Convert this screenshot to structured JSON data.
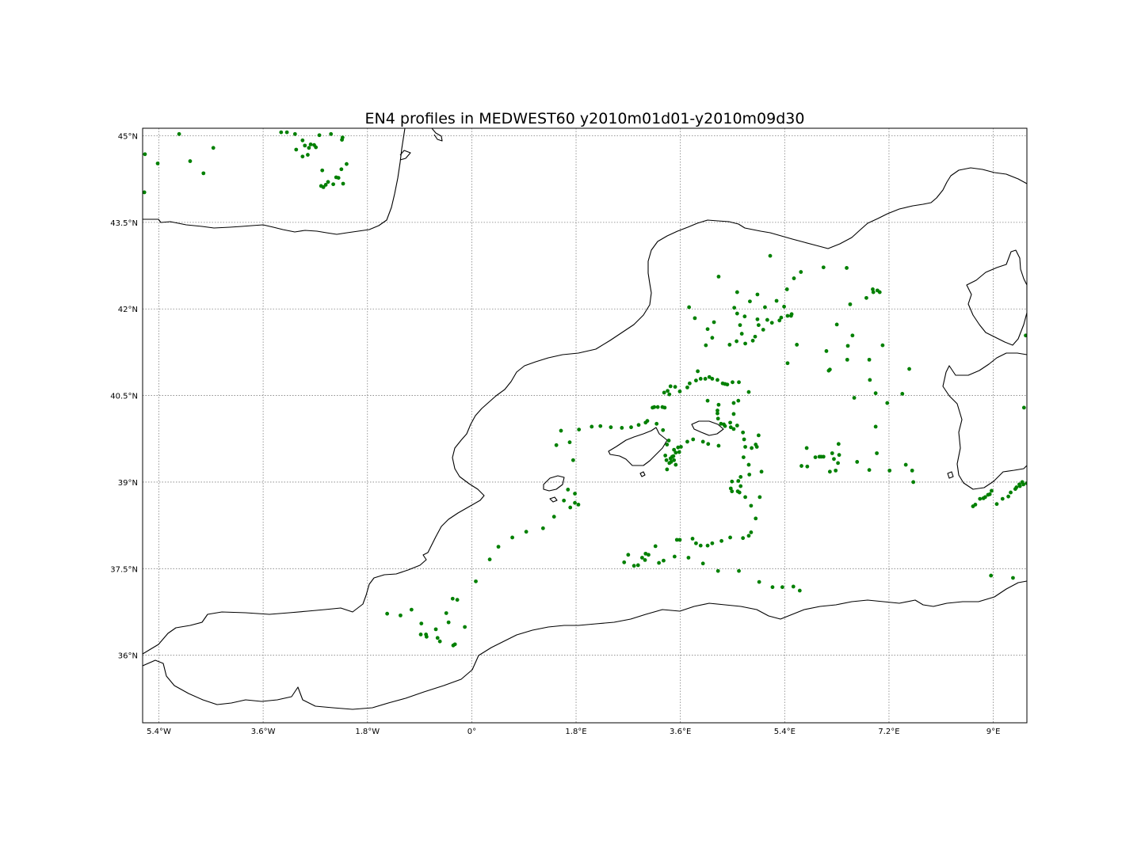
{
  "chart_data": {
    "type": "scatter",
    "title": "EN4 profiles in MEDWEST60 y2010m01d01-y2010m09d30",
    "xlabel": "",
    "ylabel": "",
    "xlim": [
      -5.68,
      9.58
    ],
    "ylim": [
      34.83,
      45.13
    ],
    "grid": true,
    "marker_color": "#008000",
    "coastline_color": "#000000",
    "x_ticks": [
      {
        "value": -5.4,
        "label": "5.4°W"
      },
      {
        "value": -3.6,
        "label": "3.6°W"
      },
      {
        "value": -1.8,
        "label": "1.8°W"
      },
      {
        "value": 0,
        "label": "0°"
      },
      {
        "value": 1.8,
        "label": "1.8°E"
      },
      {
        "value": 3.6,
        "label": "3.6°E"
      },
      {
        "value": 5.4,
        "label": "5.4°E"
      },
      {
        "value": 7.2,
        "label": "7.2°E"
      },
      {
        "value": 9.0,
        "label": "9°E"
      }
    ],
    "y_ticks": [
      {
        "value": 36,
        "label": "36°N"
      },
      {
        "value": 37.5,
        "label": "37.5°N"
      },
      {
        "value": 39,
        "label": "39°N"
      },
      {
        "value": 40.5,
        "label": "40.5°N"
      },
      {
        "value": 42,
        "label": "42°N"
      },
      {
        "value": 43.5,
        "label": "43.5°N"
      },
      {
        "value": 45,
        "label": "45°N"
      }
    ],
    "points": [
      [
        -5.64,
        44.68
      ],
      [
        -5.42,
        44.52
      ],
      [
        -5.05,
        45.03
      ],
      [
        -4.86,
        44.56
      ],
      [
        -4.63,
        44.35
      ],
      [
        -4.46,
        44.79
      ],
      [
        -3.29,
        45.06
      ],
      [
        -3.19,
        45.06
      ],
      [
        -3.05,
        45.03
      ],
      [
        -2.92,
        44.92
      ],
      [
        -2.81,
        44.79
      ],
      [
        -2.78,
        44.85
      ],
      [
        -2.88,
        44.83
      ],
      [
        -2.69,
        44.8
      ],
      [
        -2.72,
        44.84
      ],
      [
        -2.63,
        45.01
      ],
      [
        -2.43,
        45.03
      ],
      [
        -2.23,
        44.97
      ],
      [
        -2.24,
        44.93
      ],
      [
        -3.03,
        44.76
      ],
      [
        -2.92,
        44.64
      ],
      [
        -2.83,
        44.67
      ],
      [
        -2.58,
        44.4
      ],
      [
        -2.6,
        44.13
      ],
      [
        -2.52,
        44.15
      ],
      [
        -2.48,
        44.2
      ],
      [
        -2.34,
        44.28
      ],
      [
        -2.3,
        44.27
      ],
      [
        -2.25,
        44.42
      ],
      [
        -2.16,
        44.51
      ],
      [
        -2.22,
        44.17
      ],
      [
        -2.39,
        44.16
      ],
      [
        -2.56,
        44.11
      ],
      [
        -5.65,
        44.02
      ],
      [
        4.26,
        42.56
      ],
      [
        4.58,
        42.29
      ],
      [
        4.93,
        42.25
      ],
      [
        4.8,
        42.13
      ],
      [
        4.53,
        42.02
      ],
      [
        4.58,
        41.92
      ],
      [
        4.71,
        41.87
      ],
      [
        5.06,
        42.03
      ],
      [
        5.26,
        42.14
      ],
      [
        5.39,
        42.04
      ],
      [
        5.44,
        42.34
      ],
      [
        5.52,
        41.91
      ],
      [
        5.51,
        41.88
      ],
      [
        5.45,
        41.88
      ],
      [
        5.34,
        41.85
      ],
      [
        5.31,
        41.8
      ],
      [
        4.93,
        41.82
      ],
      [
        5.1,
        41.81
      ],
      [
        4.95,
        41.72
      ],
      [
        5.18,
        41.76
      ],
      [
        5.03,
        41.64
      ],
      [
        4.89,
        41.52
      ],
      [
        4.63,
        41.72
      ],
      [
        4.66,
        41.57
      ],
      [
        4.85,
        41.45
      ],
      [
        4.72,
        41.4
      ],
      [
        4.57,
        41.44
      ],
      [
        4.45,
        41.38
      ],
      [
        4.18,
        41.77
      ],
      [
        4.07,
        41.65
      ],
      [
        4.15,
        41.5
      ],
      [
        4.04,
        41.37
      ],
      [
        3.85,
        41.84
      ],
      [
        3.75,
        42.03
      ],
      [
        5.45,
        41.06
      ],
      [
        5.61,
        41.38
      ],
      [
        5.15,
        42.92
      ],
      [
        5.56,
        42.53
      ],
      [
        5.68,
        42.64
      ],
      [
        6.07,
        42.72
      ],
      [
        6.47,
        42.71
      ],
      [
        6.53,
        42.08
      ],
      [
        6.93,
        42.29
      ],
      [
        6.92,
        42.34
      ],
      [
        7.0,
        42.32
      ],
      [
        7.04,
        42.29
      ],
      [
        6.81,
        42.19
      ],
      [
        7.09,
        41.37
      ],
      [
        6.3,
        41.73
      ],
      [
        6.57,
        41.54
      ],
      [
        6.49,
        41.36
      ],
      [
        6.48,
        41.12
      ],
      [
        6.86,
        41.12
      ],
      [
        6.12,
        41.27
      ],
      [
        6.18,
        40.95
      ],
      [
        6.16,
        40.93
      ],
      [
        6.87,
        40.77
      ],
      [
        6.97,
        40.54
      ],
      [
        6.6,
        40.46
      ],
      [
        7.17,
        40.37
      ],
      [
        7.43,
        40.53
      ],
      [
        7.55,
        40.96
      ],
      [
        6.97,
        39.96
      ],
      [
        5.78,
        39.59
      ],
      [
        6.0,
        39.44
      ],
      [
        5.93,
        39.43
      ],
      [
        6.03,
        39.44
      ],
      [
        6.07,
        39.44
      ],
      [
        6.25,
        39.4
      ],
      [
        6.32,
        39.33
      ],
      [
        6.34,
        39.47
      ],
      [
        6.22,
        39.5
      ],
      [
        6.33,
        39.66
      ],
      [
        6.65,
        39.35
      ],
      [
        6.86,
        39.21
      ],
      [
        6.99,
        39.5
      ],
      [
        7.21,
        39.2
      ],
      [
        7.49,
        39.3
      ],
      [
        7.6,
        39.2
      ],
      [
        7.62,
        39.0
      ],
      [
        5.69,
        39.28
      ],
      [
        5.79,
        39.27
      ],
      [
        6.18,
        39.18
      ],
      [
        6.28,
        39.2
      ],
      [
        3.43,
        40.66
      ],
      [
        3.38,
        40.58
      ],
      [
        3.32,
        40.55
      ],
      [
        3.41,
        40.52
      ],
      [
        3.59,
        40.57
      ],
      [
        3.51,
        40.65
      ],
      [
        3.72,
        40.64
      ],
      [
        3.87,
        40.76
      ],
      [
        3.76,
        40.71
      ],
      [
        3.9,
        40.92
      ],
      [
        3.95,
        40.79
      ],
      [
        4.03,
        40.79
      ],
      [
        4.1,
        40.82
      ],
      [
        4.15,
        40.79
      ],
      [
        4.24,
        40.77
      ],
      [
        4.33,
        40.71
      ],
      [
        4.37,
        40.7
      ],
      [
        4.41,
        40.69
      ],
      [
        4.5,
        40.73
      ],
      [
        4.61,
        40.73
      ],
      [
        4.78,
        40.56
      ],
      [
        4.6,
        40.41
      ],
      [
        4.52,
        40.37
      ],
      [
        4.07,
        40.41
      ],
      [
        4.26,
        40.34
      ],
      [
        4.24,
        40.24
      ],
      [
        4.24,
        40.19
      ],
      [
        4.25,
        40.1
      ],
      [
        4.3,
        40.01
      ],
      [
        4.35,
        40.0
      ],
      [
        4.52,
        40.18
      ],
      [
        4.58,
        39.98
      ],
      [
        4.37,
        39.97
      ],
      [
        4.46,
        40.03
      ],
      [
        4.47,
        39.95
      ],
      [
        4.52,
        39.92
      ],
      [
        4.68,
        39.86
      ],
      [
        4.7,
        39.74
      ],
      [
        4.72,
        39.61
      ],
      [
        4.83,
        39.59
      ],
      [
        4.9,
        39.65
      ],
      [
        4.92,
        39.61
      ],
      [
        4.95,
        39.81
      ],
      [
        4.69,
        39.43
      ],
      [
        4.78,
        39.3
      ],
      [
        5.0,
        39.18
      ],
      [
        4.79,
        39.13
      ],
      [
        4.64,
        39.09
      ],
      [
        4.49,
        39.01
      ],
      [
        4.6,
        39.02
      ],
      [
        4.64,
        38.93
      ],
      [
        4.62,
        38.82
      ],
      [
        4.47,
        38.89
      ],
      [
        4.49,
        38.84
      ],
      [
        4.59,
        38.84
      ],
      [
        4.72,
        38.74
      ],
      [
        4.97,
        38.74
      ],
      [
        4.82,
        38.59
      ],
      [
        4.9,
        38.37
      ],
      [
        4.82,
        38.13
      ],
      [
        4.78,
        38.07
      ],
      [
        4.68,
        38.03
      ],
      [
        3.12,
        40.29
      ],
      [
        3.15,
        40.3
      ],
      [
        3.21,
        40.3
      ],
      [
        3.29,
        40.3
      ],
      [
        3.33,
        40.29
      ],
      [
        1.54,
        39.89
      ],
      [
        1.85,
        39.91
      ],
      [
        2.07,
        39.96
      ],
      [
        2.22,
        39.97
      ],
      [
        2.4,
        39.95
      ],
      [
        2.59,
        39.94
      ],
      [
        2.75,
        39.95
      ],
      [
        2.88,
        39.99
      ],
      [
        3.0,
        40.03
      ],
      [
        3.03,
        40.06
      ],
      [
        3.19,
        40.01
      ],
      [
        3.3,
        39.9
      ],
      [
        3.37,
        39.65
      ],
      [
        3.4,
        39.72
      ],
      [
        3.49,
        39.56
      ],
      [
        3.56,
        39.6
      ],
      [
        3.61,
        39.61
      ],
      [
        3.72,
        39.7
      ],
      [
        3.82,
        39.74
      ],
      [
        3.99,
        39.7
      ],
      [
        4.08,
        39.66
      ],
      [
        4.26,
        39.63
      ],
      [
        3.52,
        39.51
      ],
      [
        3.58,
        39.52
      ],
      [
        3.46,
        39.44
      ],
      [
        3.49,
        39.38
      ],
      [
        3.44,
        39.35
      ],
      [
        3.52,
        39.3
      ],
      [
        3.37,
        39.22
      ],
      [
        3.41,
        39.33
      ],
      [
        3.36,
        39.38
      ],
      [
        3.43,
        39.41
      ],
      [
        3.48,
        39.45
      ],
      [
        3.34,
        39.46
      ],
      [
        1.46,
        39.64
      ],
      [
        1.69,
        39.69
      ],
      [
        1.75,
        39.38
      ],
      [
        1.66,
        38.87
      ],
      [
        1.78,
        38.8
      ],
      [
        1.78,
        38.64
      ],
      [
        1.7,
        38.56
      ],
      [
        1.59,
        38.68
      ],
      [
        1.84,
        38.61
      ],
      [
        1.42,
        38.4
      ],
      [
        1.23,
        38.2
      ],
      [
        0.94,
        38.14
      ],
      [
        0.7,
        38.04
      ],
      [
        0.46,
        37.88
      ],
      [
        0.31,
        37.66
      ],
      [
        0.07,
        37.28
      ],
      [
        2.63,
        37.61
      ],
      [
        2.7,
        37.74
      ],
      [
        2.8,
        37.55
      ],
      [
        2.87,
        37.56
      ],
      [
        2.94,
        37.69
      ],
      [
        2.99,
        37.65
      ],
      [
        3.05,
        37.74
      ],
      [
        3.0,
        37.76
      ],
      [
        3.17,
        37.89
      ],
      [
        3.23,
        37.6
      ],
      [
        3.31,
        37.64
      ],
      [
        3.5,
        37.71
      ],
      [
        3.54,
        38.0
      ],
      [
        3.59,
        38.0
      ],
      [
        3.81,
        38.02
      ],
      [
        3.87,
        37.94
      ],
      [
        3.95,
        37.9
      ],
      [
        3.99,
        37.59
      ],
      [
        4.07,
        37.9
      ],
      [
        4.15,
        37.94
      ],
      [
        4.31,
        37.98
      ],
      [
        4.46,
        38.04
      ],
      [
        3.74,
        37.69
      ],
      [
        4.25,
        37.46
      ],
      [
        4.61,
        37.46
      ],
      [
        4.96,
        37.27
      ],
      [
        5.19,
        37.18
      ],
      [
        5.36,
        37.18
      ],
      [
        5.55,
        37.19
      ],
      [
        5.66,
        37.12
      ],
      [
        -1.46,
        36.72
      ],
      [
        -1.23,
        36.69
      ],
      [
        -1.04,
        36.79
      ],
      [
        -0.87,
        36.55
      ],
      [
        -0.79,
        36.36
      ],
      [
        -0.78,
        36.32
      ],
      [
        -0.88,
        36.36
      ],
      [
        -0.62,
        36.45
      ],
      [
        -0.59,
        36.3
      ],
      [
        -0.55,
        36.24
      ],
      [
        -0.44,
        36.73
      ],
      [
        -0.33,
        36.98
      ],
      [
        -0.25,
        36.96
      ],
      [
        -0.4,
        36.57
      ],
      [
        -0.29,
        36.19
      ],
      [
        -0.32,
        36.17
      ],
      [
        -0.12,
        36.49
      ],
      [
        8.65,
        38.58
      ],
      [
        8.69,
        38.61
      ],
      [
        8.77,
        38.71
      ],
      [
        8.83,
        38.72
      ],
      [
        8.86,
        38.74
      ],
      [
        8.91,
        38.78
      ],
      [
        8.94,
        38.79
      ],
      [
        8.97,
        38.85
      ],
      [
        9.06,
        38.62
      ],
      [
        9.16,
        38.71
      ],
      [
        9.26,
        38.75
      ],
      [
        9.3,
        38.82
      ],
      [
        9.38,
        38.88
      ],
      [
        9.4,
        38.91
      ],
      [
        9.45,
        38.96
      ],
      [
        9.46,
        38.93
      ],
      [
        9.5,
        39.0
      ],
      [
        9.52,
        38.96
      ],
      [
        9.58,
        38.98
      ],
      [
        8.96,
        37.38
      ],
      [
        9.34,
        37.34
      ],
      [
        9.53,
        40.29
      ],
      [
        9.56,
        41.54
      ]
    ]
  }
}
